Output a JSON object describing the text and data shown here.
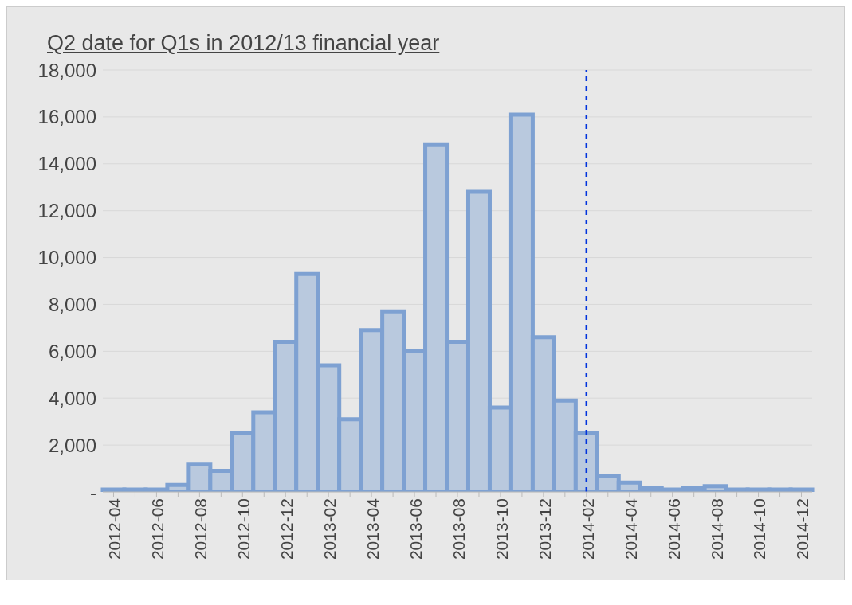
{
  "chart_data": {
    "type": "bar",
    "title": "Q2 date for Q1s in 2012/13 financial year",
    "categories": [
      "2012-04",
      null,
      "2012-06",
      null,
      "2012-08",
      null,
      "2012-10",
      null,
      "2012-12",
      null,
      "2013-02",
      null,
      "2013-04",
      null,
      "2013-06",
      null,
      "2013-08",
      null,
      "2013-10",
      null,
      "2013-12",
      null,
      "2014-02",
      null,
      "2014-04",
      null,
      "2014-06",
      null,
      "2014-08",
      null,
      "2014-10",
      null,
      "2014-12"
    ],
    "values": [
      100,
      100,
      100,
      300,
      1200,
      900,
      2500,
      3400,
      6400,
      9300,
      5400,
      3100,
      6900,
      7700,
      6000,
      14800,
      6400,
      12800,
      3600,
      16100,
      6600,
      3900,
      2500,
      700,
      400,
      150,
      100,
      150,
      250,
      100,
      100,
      100,
      100
    ],
    "color": "#b9c9de",
    "ylim": [
      0,
      18000
    ],
    "yticks": [
      {
        "value": 0,
        "label": "-"
      },
      {
        "value": 2000,
        "label": "2,000"
      },
      {
        "value": 4000,
        "label": "4,000"
      },
      {
        "value": 6000,
        "label": "6,000"
      },
      {
        "value": 8000,
        "label": "8,000"
      },
      {
        "value": 10000,
        "label": "10,000"
      },
      {
        "value": 12000,
        "label": "12,000"
      },
      {
        "value": 14000,
        "label": "14,000"
      },
      {
        "value": 16000,
        "label": "16,000"
      },
      {
        "value": 18000,
        "label": "18,000"
      }
    ],
    "grid": "y",
    "ref_lines": [
      {
        "axis": "x",
        "value": "2014-02",
        "color": "#0033dd",
        "line_style": "dashed"
      }
    ]
  }
}
